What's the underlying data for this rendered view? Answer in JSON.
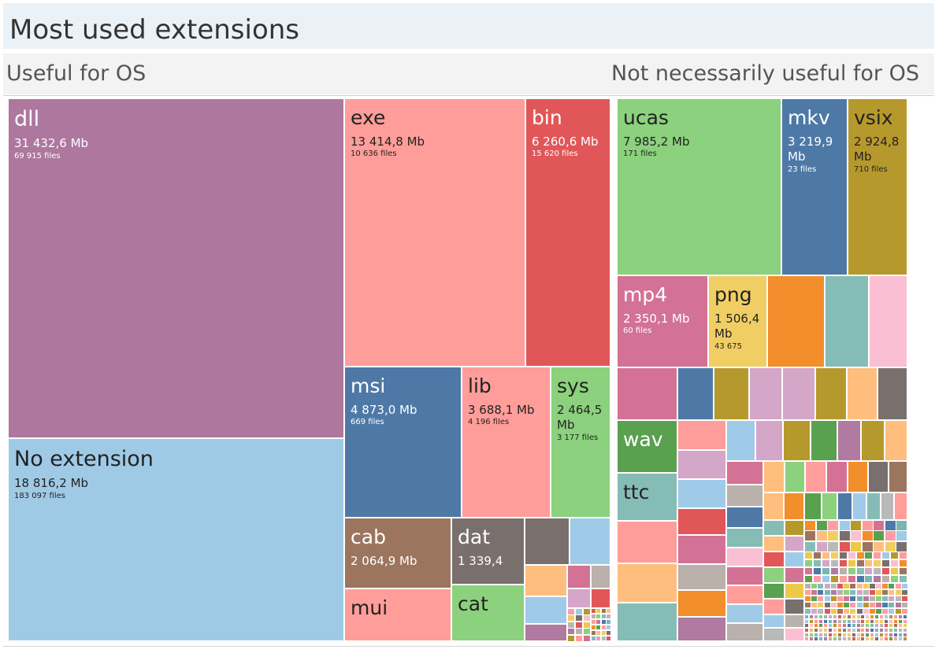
{
  "title": "Most used extensions",
  "groups": {
    "useful": "Useful for OS",
    "not_useful": "Not necessarily useful for OS"
  },
  "chart_data": {
    "type": "treemap",
    "title": "Most used extensions",
    "size_unit": "Mb",
    "groups": [
      {
        "name": "Useful for OS",
        "items": [
          {
            "ext": "dll",
            "size": "31 432,6 Mb",
            "files": "69 915 files",
            "size_mb": 31432.6,
            "file_count": 69915,
            "color": "#ad779e"
          },
          {
            "ext": "No extension",
            "size": "18 816,2 Mb",
            "files": "183 097 files",
            "size_mb": 18816.2,
            "file_count": 183097,
            "color": "#9fcae6"
          },
          {
            "ext": "exe",
            "size": "13 414,8 Mb",
            "files": "10 636 files",
            "size_mb": 13414.8,
            "file_count": 10636,
            "color": "#ff9d9a"
          },
          {
            "ext": "bin",
            "size": "6 260,6 Mb",
            "files": "15 620 files",
            "size_mb": 6260.6,
            "file_count": 15620,
            "color": "#e15759"
          },
          {
            "ext": "msi",
            "size": "4 873,0 Mb",
            "files": "669 files",
            "size_mb": 4873.0,
            "file_count": 669,
            "color": "#4e79a7"
          },
          {
            "ext": "lib",
            "size": "3 688,1 Mb",
            "files": "4 196 files",
            "size_mb": 3688.1,
            "file_count": 4196,
            "color": "#ff9d9a"
          },
          {
            "ext": "sys",
            "size": "2 464,5 Mb",
            "files": "3 177 files",
            "size_mb": 2464.5,
            "file_count": 3177,
            "color": "#8cd17d"
          },
          {
            "ext": "cab",
            "size": "2 064,9 Mb",
            "files": "",
            "size_mb": 2064.9,
            "color": "#9c755f"
          },
          {
            "ext": "dat",
            "size": "1 339,4",
            "files": "",
            "size_mb": 1339.4,
            "color": "#79706e"
          },
          {
            "ext": "mui",
            "size": "",
            "files": "",
            "color": "#ff9d9a"
          },
          {
            "ext": "cat",
            "size": "",
            "files": "",
            "color": "#8cd17d"
          }
        ]
      },
      {
        "name": "Not necessarily useful for OS",
        "items": [
          {
            "ext": "ucas",
            "size": "7 985,2 Mb",
            "files": "171 files",
            "size_mb": 7985.2,
            "file_count": 171,
            "color": "#8cd17d"
          },
          {
            "ext": "mkv",
            "size": "3 219,9 Mb",
            "files": "23 files",
            "size_mb": 3219.9,
            "file_count": 23,
            "color": "#4e79a7"
          },
          {
            "ext": "vsix",
            "size": "2 924,8 Mb",
            "files": "710 files",
            "size_mb": 2924.8,
            "file_count": 710,
            "color": "#b6992d"
          },
          {
            "ext": "mp4",
            "size": "2 350,1 Mb",
            "files": "60 files",
            "size_mb": 2350.1,
            "file_count": 60,
            "color": "#d37295"
          },
          {
            "ext": "png",
            "size": "1 506,4 Mb",
            "files": "43 675",
            "size_mb": 1506.4,
            "file_count": 43675,
            "color": "#f1ce63"
          },
          {
            "ext": "wav",
            "size": "",
            "files": "",
            "color": "#59a14f"
          },
          {
            "ext": "ttc",
            "size": "",
            "files": "",
            "color": "#86bcb6"
          }
        ]
      }
    ]
  }
}
